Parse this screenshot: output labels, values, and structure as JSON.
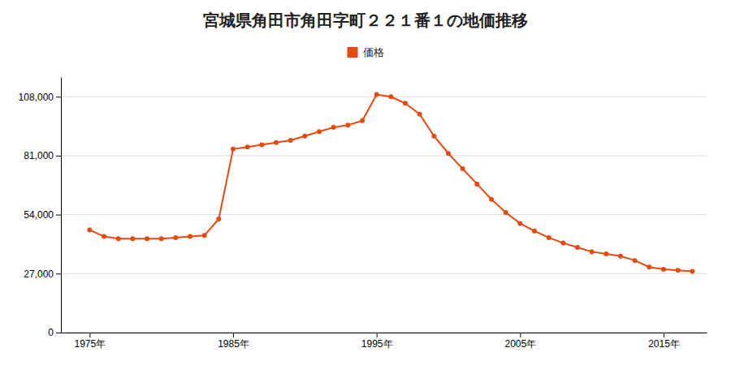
{
  "chart_data": {
    "type": "line",
    "title": "宮城県角田市角田字町２２１番１の地価推移",
    "x": [
      1975,
      1976,
      1977,
      1978,
      1979,
      1980,
      1981,
      1982,
      1983,
      1984,
      1985,
      1986,
      1987,
      1988,
      1989,
      1990,
      1991,
      1992,
      1993,
      1994,
      1995,
      1996,
      1997,
      1998,
      1999,
      2000,
      2001,
      2002,
      2003,
      2004,
      2005,
      2006,
      2007,
      2008,
      2009,
      2010,
      2011,
      2012,
      2013,
      2014,
      2015,
      2016,
      2017
    ],
    "series": [
      {
        "name": "価格",
        "color": "#e8490f",
        "marker": "circle",
        "values": [
          47000,
          44000,
          43000,
          43000,
          43000,
          43000,
          43500,
          44000,
          44500,
          52000,
          84000,
          85000,
          86000,
          87000,
          88000,
          90000,
          92000,
          94000,
          95000,
          97000,
          109000,
          108000,
          105000,
          100000,
          90000,
          82000,
          75000,
          68000,
          61000,
          55000,
          50000,
          46500,
          43500,
          41000,
          39000,
          37000,
          36000,
          35000,
          33000,
          30000,
          29000,
          28500,
          28000
        ]
      }
    ],
    "xlim": [
      1973,
      2018
    ],
    "xticks": [
      {
        "value": 1975,
        "label": "1975年"
      },
      {
        "value": 1985,
        "label": "1985年"
      },
      {
        "value": 1995,
        "label": "1995年"
      },
      {
        "value": 2005,
        "label": "2005年"
      },
      {
        "value": 2015,
        "label": "2015年"
      }
    ],
    "ylim": [
      0,
      117000
    ],
    "yticks": [
      0,
      {
        "value": 27000,
        "label": "27,000"
      },
      {
        "value": 54000,
        "label": "54,000"
      },
      {
        "value": 81000,
        "label": "81,000"
      },
      {
        "value": 108000,
        "label": "108,000"
      }
    ],
    "grid": true,
    "legend": "top"
  }
}
